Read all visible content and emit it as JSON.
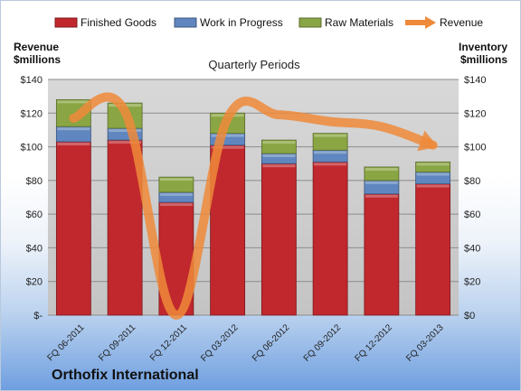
{
  "company": "Orthofix International",
  "chart_data": {
    "type": "bar",
    "stacked": true,
    "title": "Quarterly Periods",
    "ylabel_left": "Revenue\n$millions",
    "ylabel_right": "Inventory\n$millions",
    "ylim": [
      0,
      140
    ],
    "y_ticks_left": [
      "$-",
      "$20",
      "$40",
      "$60",
      "$80",
      "$100",
      "$120",
      "$140"
    ],
    "y_ticks_right": [
      "$0",
      "$20",
      "$40",
      "$60",
      "$80",
      "$100",
      "$120",
      "$140"
    ],
    "categories": [
      "FQ 06-2011",
      "FQ 09-2011",
      "FQ 12-2011",
      "FQ 03-2012",
      "FQ 06-2012",
      "FQ 09-2012",
      "FQ 12-2012",
      "FQ 03-2013"
    ],
    "series": [
      {
        "name": "Finished Goods",
        "kind": "bar",
        "color": "#c0282d",
        "values": [
          103,
          104,
          67,
          101,
          90,
          91,
          72,
          78
        ]
      },
      {
        "name": "Work in Progress",
        "kind": "bar",
        "color": "#5f86bf",
        "values": [
          9,
          7,
          6,
          7,
          6,
          7,
          8,
          7
        ]
      },
      {
        "name": "Raw Materials",
        "kind": "bar",
        "color": "#8aa543",
        "values": [
          16,
          15,
          9,
          12,
          8,
          10,
          8,
          6
        ]
      },
      {
        "name": "Revenue",
        "kind": "line",
        "color": "#ee8a3a",
        "values": [
          117,
          121,
          0,
          117,
          119,
          115,
          112,
          101
        ]
      }
    ],
    "grid": true,
    "legend": "top"
  }
}
